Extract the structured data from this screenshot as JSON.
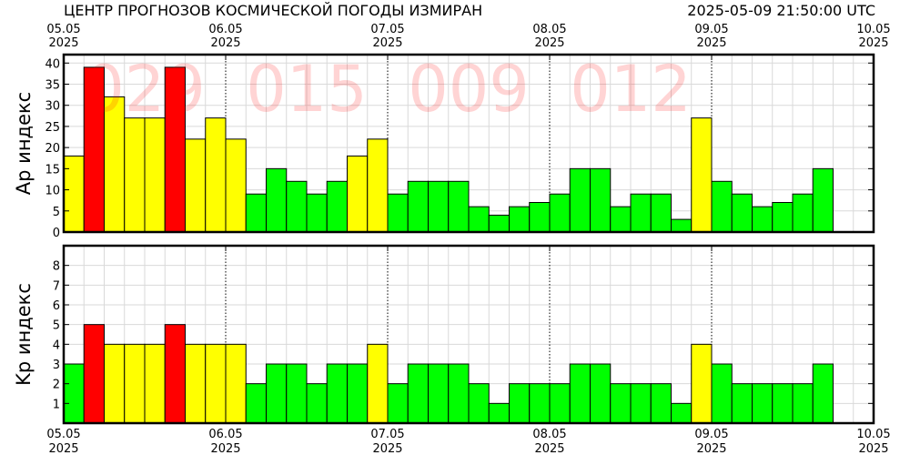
{
  "header": {
    "title": "ЦЕНТР ПРОГНОЗОВ КОСМИЧЕСКОЙ ПОГОДЫ ИЗМИРАН",
    "timestamp": "2025-05-09 21:50:00 UTC"
  },
  "chart_data": [
    {
      "type": "bar",
      "ylabel": "Ap индекс",
      "ylim": [
        0,
        42
      ],
      "yticks": [
        0,
        5,
        10,
        15,
        20,
        25,
        30,
        35,
        40
      ],
      "x_ticks": [
        {
          "day": "05.05",
          "year": "2025"
        },
        {
          "day": "06.05",
          "year": "2025"
        },
        {
          "day": "07.05",
          "year": "2025"
        },
        {
          "day": "08.05",
          "year": "2025"
        },
        {
          "day": "09.05",
          "year": "2025"
        },
        {
          "day": "10.05",
          "year": "2025"
        }
      ],
      "watermark_values": [
        "029",
        "015",
        "009",
        "012"
      ],
      "values": [
        18,
        39,
        32,
        27,
        27,
        39,
        22,
        27,
        22,
        9,
        15,
        12,
        9,
        12,
        18,
        22,
        9,
        12,
        12,
        12,
        6,
        4,
        6,
        7,
        9,
        15,
        15,
        6,
        9,
        9,
        3,
        27,
        12,
        9,
        6,
        7,
        9,
        15
      ],
      "colors": [
        "#ffff00",
        "#ff0000",
        "#ffff00",
        "#ffff00",
        "#ffff00",
        "#ff0000",
        "#ffff00",
        "#ffff00",
        "#ffff00",
        "#00ff00",
        "#00ff00",
        "#00ff00",
        "#00ff00",
        "#00ff00",
        "#ffff00",
        "#ffff00",
        "#00ff00",
        "#00ff00",
        "#00ff00",
        "#00ff00",
        "#00ff00",
        "#00ff00",
        "#00ff00",
        "#00ff00",
        "#00ff00",
        "#00ff00",
        "#00ff00",
        "#00ff00",
        "#00ff00",
        "#00ff00",
        "#00ff00",
        "#ffff00",
        "#00ff00",
        "#00ff00",
        "#00ff00",
        "#00ff00",
        "#00ff00",
        "#00ff00"
      ],
      "bins_total": 40,
      "grid": true
    },
    {
      "type": "bar",
      "ylabel": "Kp индекс",
      "ylim": [
        0,
        9
      ],
      "yticks": [
        1,
        2,
        3,
        4,
        5,
        6,
        7,
        8
      ],
      "x_ticks": [
        {
          "day": "05.05",
          "year": "2025"
        },
        {
          "day": "06.05",
          "year": "2025"
        },
        {
          "day": "07.05",
          "year": "2025"
        },
        {
          "day": "08.05",
          "year": "2025"
        },
        {
          "day": "09.05",
          "year": "2025"
        },
        {
          "day": "10.05",
          "year": "2025"
        }
      ],
      "values": [
        3,
        5,
        4,
        4,
        4,
        5,
        4,
        4,
        4,
        2,
        3,
        3,
        2,
        3,
        3,
        4,
        2,
        3,
        3,
        3,
        2,
        1,
        2,
        2,
        2,
        3,
        3,
        2,
        2,
        2,
        1,
        4,
        3,
        2,
        2,
        2,
        2,
        3
      ],
      "colors": [
        "#00ff00",
        "#ff0000",
        "#ffff00",
        "#ffff00",
        "#ffff00",
        "#ff0000",
        "#ffff00",
        "#ffff00",
        "#ffff00",
        "#00ff00",
        "#00ff00",
        "#00ff00",
        "#00ff00",
        "#00ff00",
        "#00ff00",
        "#ffff00",
        "#00ff00",
        "#00ff00",
        "#00ff00",
        "#00ff00",
        "#00ff00",
        "#00ff00",
        "#00ff00",
        "#00ff00",
        "#00ff00",
        "#00ff00",
        "#00ff00",
        "#00ff00",
        "#00ff00",
        "#00ff00",
        "#00ff00",
        "#ffff00",
        "#00ff00",
        "#00ff00",
        "#00ff00",
        "#00ff00",
        "#00ff00",
        "#00ff00"
      ],
      "bins_total": 40,
      "grid": true
    }
  ]
}
